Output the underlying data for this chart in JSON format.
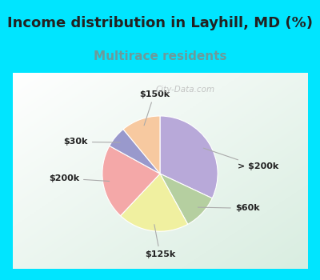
{
  "title": "Income distribution in Layhill, MD (%)",
  "subtitle": "Multirace residents",
  "labels": [
    "> $200k",
    "$60k",
    "$125k",
    "$200k",
    "$30k",
    "$150k"
  ],
  "sizes": [
    32,
    10,
    20,
    21,
    6,
    11
  ],
  "colors": [
    "#b8a9d9",
    "#b5cfa0",
    "#f0f0a0",
    "#f4a8a8",
    "#9999cc",
    "#f7c9a0"
  ],
  "background_cyan": "#00e5ff",
  "background_chart_color": "#d8eee0",
  "title_fontsize": 13,
  "subtitle_fontsize": 11,
  "subtitle_color": "#6b9b9b",
  "watermark": "City-Data.com",
  "title_color": "#222222"
}
